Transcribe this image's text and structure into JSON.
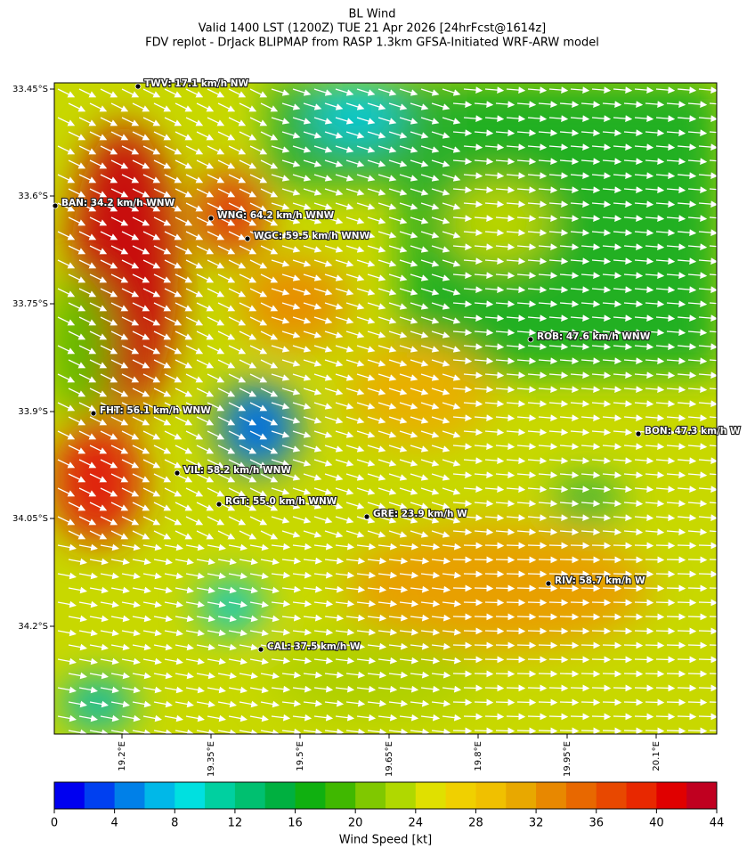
{
  "title": [
    "BL Wind",
    "Valid 1400 LST (1200Z) TUE 21 Apr 2026 [24hrFcst@1614z]",
    "FDV replot - DrJack BLIPMAP from RASP 1.3km GFSA-Initiated WRF-ARW model"
  ],
  "stations": [
    {
      "label": "TWV: 17.1 km/h NW"
    },
    {
      "label": "BAN: 34.2 km/h WNW"
    },
    {
      "label": "WNG: 64.2 km/h WNW"
    },
    {
      "label": "WGC: 59.5 km/h WNW"
    },
    {
      "label": "ROB: 47.6 km/h WNW"
    },
    {
      "label": "FHT: 56.1 km/h WNW"
    },
    {
      "label": "BON: 47.3 km/h W"
    },
    {
      "label": "VIL: 58.2 km/h WNW"
    },
    {
      "label": "RGT: 55.0 km/h WNW"
    },
    {
      "label": "GRE: 23.9 km/h W"
    },
    {
      "label": "RIV: 58.7 km/h W"
    },
    {
      "label": "CAL: 37.5 km/h W"
    }
  ],
  "lat_ticks": [
    "33.45°S",
    "33.6°S",
    "33.75°S",
    "33.9°S",
    "34.05°S",
    "34.2°S"
  ],
  "lon_ticks": [
    "19.2°E",
    "19.35°E",
    "19.5°E",
    "19.65°E",
    "19.8°E",
    "19.95°E",
    "20.1°E"
  ],
  "colorbar": {
    "label": "Wind Speed [kt]",
    "lim": [
      0,
      44
    ],
    "ticks": [
      0,
      4,
      8,
      12,
      16,
      20,
      24,
      28,
      32,
      36,
      40,
      44
    ],
    "colors": [
      "#0000f0",
      "#0040f0",
      "#0080e8",
      "#00b8e8",
      "#00e0e0",
      "#00d0a0",
      "#00c070",
      "#00b040",
      "#10b010",
      "#40b800",
      "#80c800",
      "#b0d800",
      "#e0e000",
      "#f0d000",
      "#f0c000",
      "#e8a800",
      "#e88800",
      "#e86800",
      "#e84800",
      "#e82800",
      "#e00000",
      "#c00020"
    ]
  }
}
